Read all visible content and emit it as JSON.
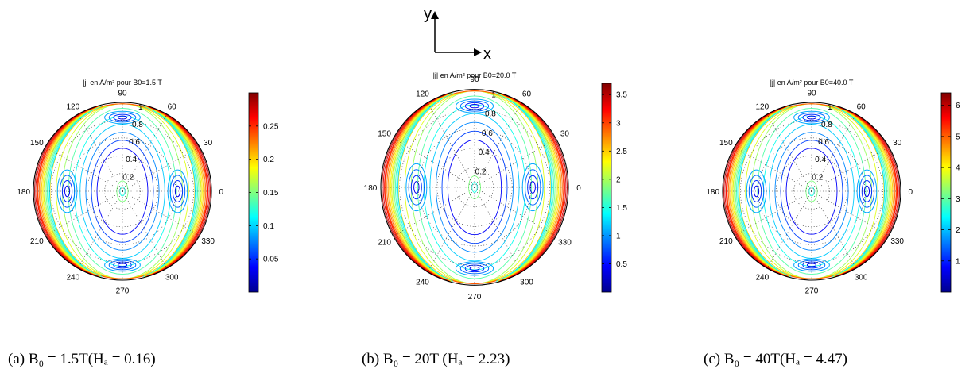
{
  "axes_indicator": {
    "y_label": "y",
    "x_label": "x"
  },
  "chart_data": [
    {
      "type": "polar-contour",
      "title": "|j| en A/m² pour B0=1.5 T",
      "caption": "(a) B₀ = 1.5T(Hₐ = 0.16)",
      "angle_ticks": [
        "0",
        "30",
        "60",
        "90",
        "120",
        "150",
        "180",
        "210",
        "240",
        "270",
        "300",
        "330"
      ],
      "radial_ticks": [
        "0.2",
        "0.4",
        "0.6",
        "0.8",
        "1"
      ],
      "rlim": [
        0,
        1
      ],
      "colorbar": {
        "ticks": [
          0.05,
          0.1,
          0.15,
          0.2,
          0.25
        ],
        "labels": [
          "0.05",
          "0.1",
          "0.15",
          "0.2",
          "0.25"
        ],
        "range": [
          0,
          0.3
        ],
        "colormap": "jet"
      },
      "max_value": 0.3
    },
    {
      "type": "polar-contour",
      "title": "|j| en A/m² pour B0=20.0 T",
      "caption": "(b) B₀ = 20T (Hₐ = 2.23)",
      "angle_ticks": [
        "0",
        "30",
        "60",
        "90",
        "120",
        "150",
        "180",
        "210",
        "240",
        "270",
        "300",
        "330"
      ],
      "radial_ticks": [
        "0.2",
        "0.4",
        "0.6",
        "0.8",
        "1"
      ],
      "rlim": [
        0,
        1
      ],
      "colorbar": {
        "ticks": [
          0.5,
          1,
          1.5,
          2,
          2.5,
          3,
          3.5
        ],
        "labels": [
          "0.5",
          "1",
          "1.5",
          "2",
          "2.5",
          "3",
          "3.5"
        ],
        "range": [
          0,
          3.7
        ],
        "colormap": "jet"
      },
      "max_value": 3.7
    },
    {
      "type": "polar-contour",
      "title": "|j| en A/m² pour B0=40.0 T",
      "caption": "(c) B₀ = 40T(Hₐ = 4.47)",
      "angle_ticks": [
        "0",
        "30",
        "60",
        "90",
        "120",
        "150",
        "180",
        "210",
        "240",
        "270",
        "300",
        "330"
      ],
      "radial_ticks": [
        "0.2",
        "0.4",
        "0.6",
        "0.8",
        "1"
      ],
      "rlim": [
        0,
        1
      ],
      "colorbar": {
        "ticks": [
          1,
          2,
          3,
          4,
          5,
          6
        ],
        "labels": [
          "1",
          "2",
          "3",
          "4",
          "5",
          "6"
        ],
        "range": [
          0,
          6.4
        ],
        "colormap": "jet"
      },
      "max_value": 6.4
    }
  ]
}
